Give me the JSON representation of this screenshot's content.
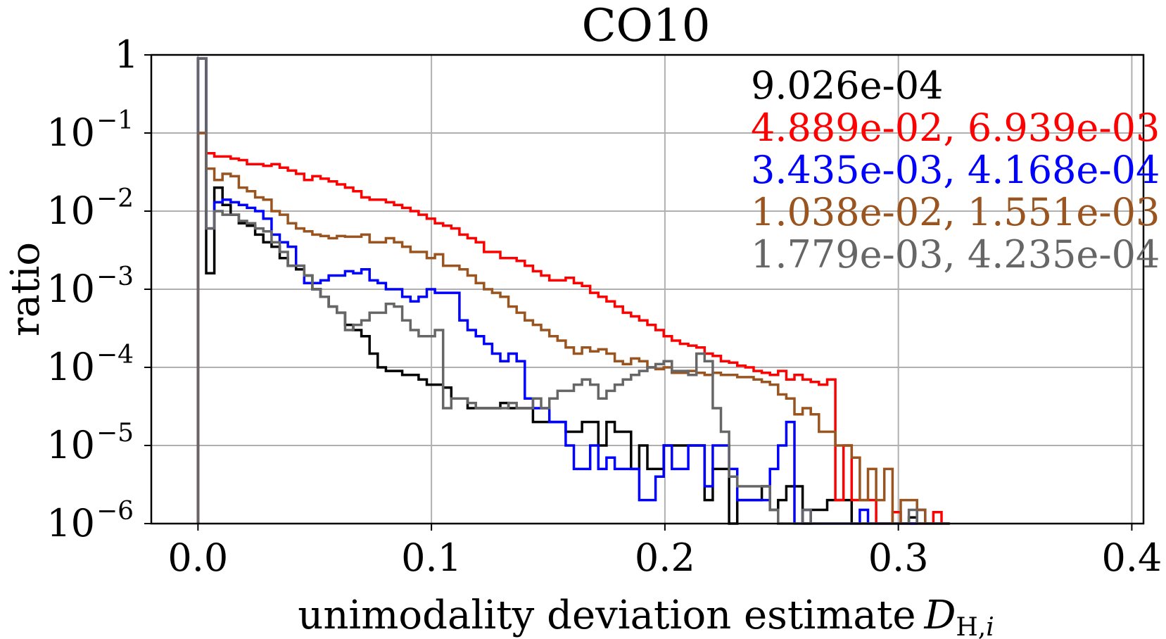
{
  "chart_data": {
    "type": "line",
    "title": "CO10",
    "xlabel": "unimodality deviation estimate",
    "xlabel_math": "D",
    "xlabel_sub": "H,",
    "xlabel_sub_italic": "i",
    "ylabel": "ratio",
    "xlim": [
      -0.02,
      0.405
    ],
    "ylim_log10": [
      -6,
      0
    ],
    "xticks": [
      {
        "value": 0.0,
        "label": "0.0"
      },
      {
        "value": 0.1,
        "label": "0.1"
      },
      {
        "value": 0.2,
        "label": "0.2"
      },
      {
        "value": 0.3,
        "label": "0.3"
      },
      {
        "value": 0.4,
        "label": "0.4"
      }
    ],
    "yticks": [
      {
        "exp": 0,
        "base": "1",
        "sup": ""
      },
      {
        "exp": -1,
        "base": "10",
        "sup": "−1"
      },
      {
        "exp": -2,
        "base": "10",
        "sup": "−2"
      },
      {
        "exp": -3,
        "base": "10",
        "sup": "−3"
      },
      {
        "exp": -4,
        "base": "10",
        "sup": "−4"
      },
      {
        "exp": -5,
        "base": "10",
        "sup": "−5"
      },
      {
        "exp": -6,
        "base": "10",
        "sup": "−6"
      }
    ],
    "grid": true,
    "bin_width": 0.0035,
    "x_start": 0.0,
    "legend_position": "top-right",
    "series": [
      {
        "name": "black",
        "label": "9.026e-04",
        "color": "#000000",
        "values": [
          0.9,
          0.0016,
          0.02,
          0.012,
          0.009,
          0.007,
          0.0065,
          0.005,
          0.004,
          0.0035,
          0.0025,
          0.002,
          0.0018,
          0.0015,
          0.001,
          0.0008,
          0.0006,
          0.0005,
          0.00035,
          0.0003,
          0.00025,
          0.00015,
          0.0001,
          9e-05,
          9e-05,
          8e-05,
          8e-05,
          7e-05,
          6e-05,
          6e-05,
          5.5e-05,
          4e-05,
          4e-05,
          3e-05,
          3e-05,
          3e-05,
          3e-05,
          3.5e-05,
          3e-05,
          3e-05,
          3e-05,
          2e-05,
          2e-05,
          2e-05,
          2e-05,
          1.5e-05,
          1.5e-05,
          2e-05,
          2e-05,
          1e-05,
          2e-05,
          1.5e-05,
          1.5e-05,
          5e-06,
          1e-05,
          5e-06,
          5e-06,
          1e-05,
          1e-05,
          1e-05,
          1e-05,
          1e-05,
          2e-06,
          5e-06,
          5e-06,
          1e-06,
          2e-06,
          2e-06,
          2e-06,
          3e-06,
          1.5e-06,
          2e-06,
          3e-06,
          3e-06,
          1e-06,
          1.5e-06,
          1.5e-06,
          2e-06,
          2e-06,
          2e-06,
          1e-06,
          1e-06,
          1e-06,
          1e-06,
          1e-06,
          1e-06,
          1e-06,
          1.2e-06,
          1e-06,
          1e-06,
          1e-06,
          1e-06
        ]
      },
      {
        "name": "red",
        "label": "4.889e-02, 6.939e-03",
        "color": "#ff0000",
        "values": [
          0.1,
          0.055,
          0.05,
          0.05,
          0.047,
          0.045,
          0.04,
          0.04,
          0.038,
          0.04,
          0.036,
          0.033,
          0.03,
          0.025,
          0.028,
          0.026,
          0.024,
          0.022,
          0.02,
          0.018,
          0.015,
          0.014,
          0.014,
          0.013,
          0.012,
          0.011,
          0.01,
          0.009,
          0.008,
          0.007,
          0.0065,
          0.006,
          0.005,
          0.0045,
          0.004,
          0.003,
          0.003,
          0.0025,
          0.0025,
          0.0023,
          0.002,
          0.0017,
          0.0015,
          0.0013,
          0.0013,
          0.0014,
          0.0012,
          0.0011,
          0.0009,
          0.0008,
          0.0007,
          0.0006,
          0.0005,
          0.00045,
          0.0004,
          0.00035,
          0.0003,
          0.00025,
          0.00022,
          0.0002,
          0.00019,
          0.00018,
          0.00015,
          0.00014,
          0.00012,
          0.000115,
          0.000105,
          0.0001,
          9e-05,
          8.5e-05,
          8e-05,
          9e-05,
          7e-05,
          8e-05,
          7e-05,
          6.5e-05,
          6e-05,
          7e-05,
          2e-06,
          1e-05,
          2e-06,
          2e-06,
          2e-06,
          1e-06,
          1e-06,
          1.4e-06,
          1e-06,
          1e-06,
          1e-06,
          1e-06,
          1.4e-06,
          1e-06
        ]
      },
      {
        "name": "blue",
        "label": "3.435e-03, 4.168e-04",
        "color": "#0000ff",
        "values": [
          0.9,
          0.006,
          0.013,
          0.014,
          0.013,
          0.012,
          0.011,
          0.01,
          0.008,
          0.005,
          0.004,
          0.0035,
          0.002,
          0.0012,
          0.0012,
          0.0013,
          0.0015,
          0.0015,
          0.0017,
          0.0016,
          0.0018,
          0.0013,
          0.0012,
          0.001,
          0.001,
          0.0008,
          0.0007,
          0.0008,
          0.001,
          0.0009,
          0.0009,
          0.0009,
          0.0004,
          0.0003,
          0.00025,
          0.0002,
          0.00015,
          0.00012,
          0.00015,
          0.00012,
          4e-05,
          3e-05,
          3e-05,
          2e-05,
          2e-05,
          1e-05,
          5e-06,
          5e-06,
          1e-05,
          5e-06,
          7e-06,
          5e-06,
          5e-06,
          5e-06,
          2e-06,
          2e-06,
          4e-06,
          1e-05,
          5e-06,
          5e-06,
          1e-05,
          1e-05,
          3e-06,
          1e-05,
          1e-05,
          5e-06,
          2e-06,
          2e-06,
          2e-06,
          2e-06,
          5e-06,
          1e-05,
          2e-05,
          1e-06,
          1.5e-06,
          1e-06,
          1e-06,
          1e-06,
          1e-06,
          1e-06,
          1e-06,
          1.5e-06,
          1e-06,
          1e-06,
          1e-06,
          1e-06,
          1e-06,
          1e-06,
          1.5e-06,
          1e-06,
          1e-06,
          1e-06
        ]
      },
      {
        "name": "brown",
        "label": "1.038e-02, 1.551e-03",
        "color": "#99541f",
        "values": [
          0.1,
          0.035,
          0.025,
          0.03,
          0.028,
          0.02,
          0.018,
          0.015,
          0.014,
          0.01,
          0.009,
          0.007,
          0.006,
          0.0055,
          0.005,
          0.0048,
          0.0045,
          0.0048,
          0.0047,
          0.0047,
          0.005,
          0.004,
          0.004,
          0.0045,
          0.004,
          0.0035,
          0.003,
          0.003,
          0.0025,
          0.0028,
          0.002,
          0.002,
          0.0018,
          0.0015,
          0.0012,
          0.001,
          0.0009,
          0.0008,
          0.0006,
          0.0005,
          0.0004,
          0.00035,
          0.0003,
          0.00025,
          0.00022,
          0.00018,
          0.00015,
          0.00018,
          0.00016,
          0.00017,
          0.00015,
          0.00012,
          0.00011,
          0.00013,
          0.00012,
          0.0001,
          9.5e-05,
          0.0001,
          8.5e-05,
          8.5e-05,
          9e-05,
          8.5e-05,
          8e-05,
          8.5e-05,
          8e-05,
          8e-05,
          7.5e-05,
          7.5e-05,
          7e-05,
          6.5e-05,
          6e-05,
          4.5e-05,
          4e-05,
          2.5e-05,
          3e-05,
          2.5e-05,
          1.5e-05,
          1.5e-05,
          1e-05,
          1e-05,
          7e-06,
          2e-06,
          5e-06,
          2e-06,
          5e-06,
          1e-06,
          2e-06,
          2e-06,
          1.5e-06,
          1e-06,
          1e-06,
          1e-06
        ]
      },
      {
        "name": "gray",
        "label": "1.779e-03, 4.235e-04",
        "color": "#666666",
        "values": [
          0.9,
          0.006,
          0.01,
          0.009,
          0.009,
          0.0075,
          0.007,
          0.006,
          0.0055,
          0.004,
          0.003,
          0.002,
          0.002,
          0.0015,
          0.001,
          0.0008,
          0.0006,
          0.0005,
          0.0003,
          0.00035,
          0.0004,
          0.0005,
          0.0005,
          0.00065,
          0.0006,
          0.0004,
          0.0003,
          0.00025,
          0.00025,
          0.0003,
          3e-05,
          4e-05,
          4e-05,
          3.5e-05,
          3e-05,
          3e-05,
          3e-05,
          3e-05,
          3.5e-05,
          3e-05,
          3e-05,
          4e-05,
          3e-05,
          4e-05,
          5e-05,
          5e-05,
          6e-05,
          7e-05,
          6e-05,
          4e-05,
          5e-05,
          6e-05,
          7e-05,
          8e-05,
          9e-05,
          0.0001,
          0.00011,
          0.00012,
          9e-05,
          9e-05,
          8e-05,
          0.00015,
          0.00012,
          3e-05,
          1.5e-05,
          4e-06,
          3e-06,
          3e-06,
          3e-06,
          3e-06,
          1.5e-06,
          1e-06,
          1e-06,
          1e-06,
          1.5e-06,
          1e-06,
          1e-06,
          1e-06,
          1e-06,
          1e-06,
          1e-06,
          1e-06,
          1e-06,
          1e-06,
          1e-06,
          1e-06,
          1e-06,
          1.5e-06,
          1e-06,
          1e-06,
          1e-06,
          1e-06
        ]
      }
    ]
  }
}
